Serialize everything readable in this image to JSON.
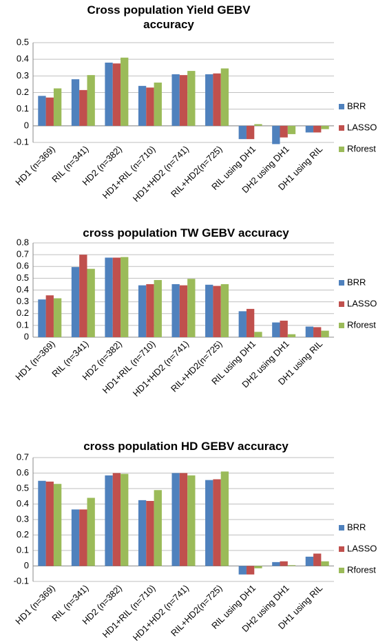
{
  "chart_data": [
    {
      "type": "bar",
      "title": "Cross population Yield GEBV accuracy",
      "categories": [
        "HD1 (n=369)",
        "RIL (n=341)",
        "HD2 (n=382)",
        "HD1+RIL (n=710)",
        "HD1+HD2 (n=741)",
        "RIL+HD2(n=725)",
        "RIL using DH1",
        "DH2 using DH1",
        "DH1 using RIL"
      ],
      "series": [
        {
          "name": "BRR",
          "color": "#4f81bd",
          "values": [
            0.18,
            0.28,
            0.38,
            0.24,
            0.31,
            0.31,
            -0.08,
            -0.11,
            -0.04
          ]
        },
        {
          "name": "LASSO",
          "color": "#c0504d",
          "values": [
            0.17,
            0.215,
            0.375,
            0.23,
            0.305,
            0.315,
            -0.08,
            -0.07,
            -0.04
          ]
        },
        {
          "name": "Rforest",
          "color": "#9bbb59",
          "values": [
            0.225,
            0.305,
            0.41,
            0.26,
            0.33,
            0.345,
            0.01,
            -0.05,
            -0.02
          ]
        }
      ],
      "ylim": [
        -0.1,
        0.5
      ],
      "yticks": [
        -0.1,
        0,
        0.1,
        0.2,
        0.3,
        0.4,
        0.5
      ],
      "grid": true,
      "legend": "right"
    },
    {
      "type": "bar",
      "title": "cross population TW GEBV accuracy",
      "categories": [
        "HD1 (n=369)",
        "RIL (n=341)",
        "HD2 (n=382)",
        "HD1+RIL (n=710)",
        "HD1+HD2 (n=741)",
        "RIL+HD2(n=725)",
        "RIL using DH1",
        "DH2 using DH1",
        "DH1 using RIL"
      ],
      "series": [
        {
          "name": "BRR",
          "color": "#4f81bd",
          "values": [
            0.32,
            0.595,
            0.675,
            0.44,
            0.45,
            0.445,
            0.22,
            0.125,
            0.09
          ]
        },
        {
          "name": "LASSO",
          "color": "#c0504d",
          "values": [
            0.355,
            0.7,
            0.675,
            0.45,
            0.44,
            0.435,
            0.24,
            0.14,
            0.085
          ]
        },
        {
          "name": "Rforest",
          "color": "#9bbb59",
          "values": [
            0.33,
            0.58,
            0.68,
            0.485,
            0.495,
            0.45,
            0.045,
            0.025,
            0.055
          ]
        }
      ],
      "ylim": [
        0,
        0.8
      ],
      "yticks": [
        0,
        0.1,
        0.2,
        0.3,
        0.4,
        0.5,
        0.6,
        0.7,
        0.8
      ],
      "grid": true,
      "legend": "right"
    },
    {
      "type": "bar",
      "title": "cross population HD GEBV accuracy",
      "categories": [
        "HD1 (n=369)",
        "RIL (n=341)",
        "HD2 (n=382)",
        "HD1+RIL (n=710)",
        "HD1+HD2 (n=741)",
        "RIL+HD2(n=725)",
        "RIL using DH1",
        "DH2 using DH1",
        "DH1 using RIL"
      ],
      "series": [
        {
          "name": "BRR",
          "color": "#4f81bd",
          "values": [
            0.55,
            0.365,
            0.585,
            0.425,
            0.6,
            0.555,
            -0.055,
            0.025,
            0.06
          ]
        },
        {
          "name": "LASSO",
          "color": "#c0504d",
          "values": [
            0.545,
            0.365,
            0.6,
            0.42,
            0.6,
            0.56,
            -0.055,
            0.03,
            0.08
          ]
        },
        {
          "name": "Rforest",
          "color": "#9bbb59",
          "values": [
            0.53,
            0.44,
            0.595,
            0.49,
            0.585,
            0.61,
            -0.015,
            0.005,
            0.03
          ]
        }
      ],
      "ylim": [
        -0.1,
        0.7
      ],
      "yticks": [
        -0.1,
        0,
        0.1,
        0.2,
        0.3,
        0.4,
        0.5,
        0.6,
        0.7
      ],
      "grid": true,
      "legend": "right"
    }
  ]
}
